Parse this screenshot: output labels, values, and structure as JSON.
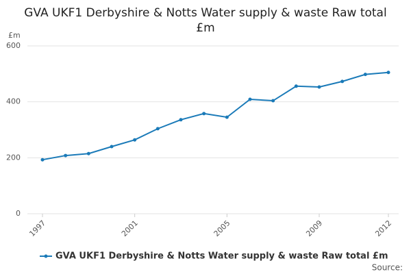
{
  "chart_data": {
    "type": "line",
    "title": "GVA UKF1 Derbyshire & Notts Water supply & waste Raw total £m",
    "y_label": "£m",
    "source": "Source:",
    "x": [
      1997,
      1998,
      1999,
      2000,
      2001,
      2002,
      2003,
      2004,
      2005,
      2006,
      2007,
      2008,
      2009,
      2010,
      2011,
      2012
    ],
    "series": [
      {
        "name": "GVA UKF1 Derbyshire & Notts Water supply & waste Raw total £m",
        "color": "#1a7ab8",
        "values": [
          193,
          208,
          215,
          240,
          264,
          304,
          336,
          358,
          345,
          409,
          404,
          456,
          453,
          473,
          498,
          505
        ]
      }
    ],
    "xlim": [
      1997,
      2012
    ],
    "xticks": [
      1997,
      2001,
      2005,
      2009,
      2012
    ],
    "ylim": [
      0,
      600
    ],
    "yticks": [
      0,
      200,
      400,
      600
    ],
    "grid": true,
    "legend": "bottom"
  }
}
